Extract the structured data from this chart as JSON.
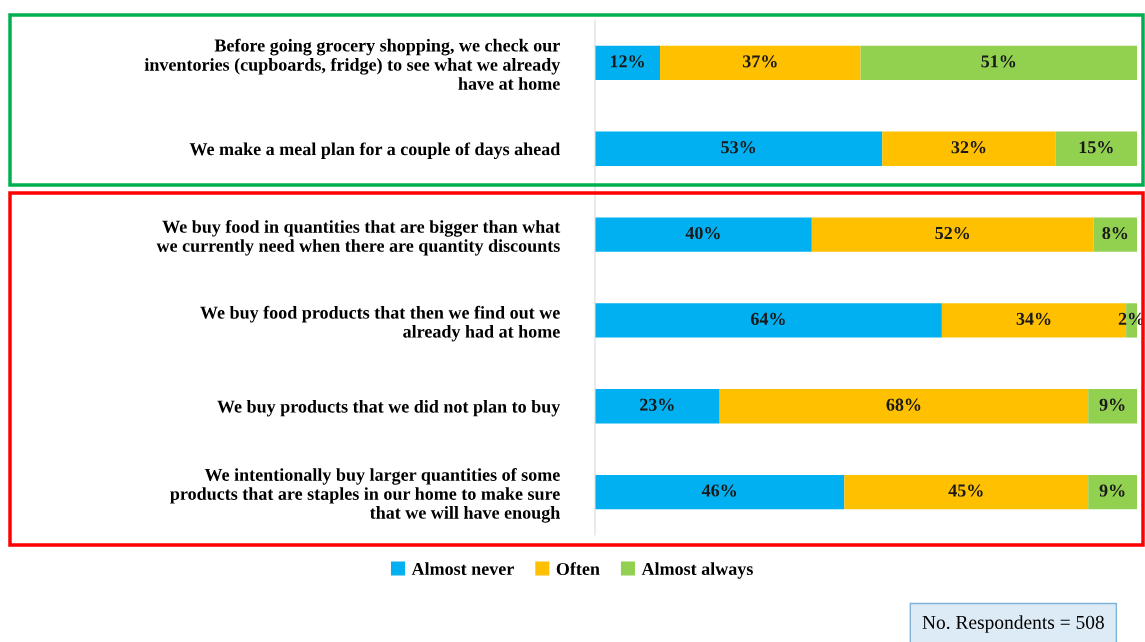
{
  "chart_data": {
    "type": "bar",
    "orientation": "horizontal",
    "stacked": true,
    "categories": [
      "Before going grocery shopping, we check our\ninventories (cupboards, fridge) to see what we already\nhave at home",
      "We make a meal plan for a couple of days ahead",
      "We buy food in quantities that are bigger than what\nwe currently need when there are quantity discounts",
      "We buy food products that then we find out we\nalready had at home",
      "We buy products that we did not plan to buy",
      "We intentionally buy larger quantities of some\nproducts that are staples in our home to make sure\nthat we will have enough"
    ],
    "series": [
      {
        "name": "Almost never",
        "color": "#00b0f0",
        "values": [
          12,
          53,
          40,
          64,
          23,
          46
        ],
        "value_labels": [
          "12%",
          "53%",
          "40%",
          "64%",
          "23%",
          "46%"
        ]
      },
      {
        "name": "Often",
        "color": "#ffc000",
        "values": [
          37,
          32,
          52,
          34,
          68,
          45
        ],
        "value_labels": [
          "37%",
          "32%",
          "52%",
          "34%",
          "68%",
          "45%"
        ]
      },
      {
        "name": "Almost always",
        "color": "#92d050",
        "values": [
          51,
          15,
          8,
          2,
          9,
          9
        ],
        "value_labels": [
          "51%",
          "15%",
          "8%",
          "2%",
          "9%",
          "9%"
        ]
      }
    ],
    "legend": "bottom",
    "tick_labels": "y",
    "annotations": [
      "No. Respondents = 508"
    ]
  }
}
